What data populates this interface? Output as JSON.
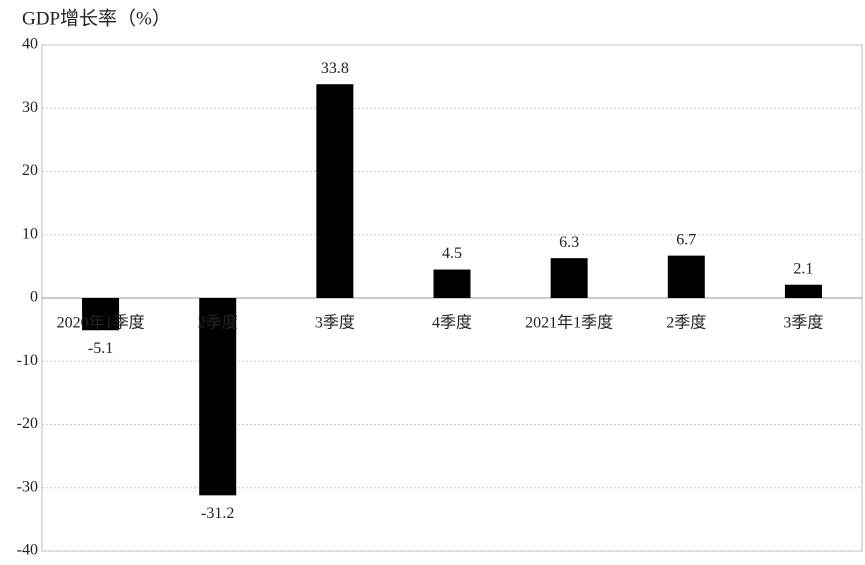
{
  "chart_data": {
    "type": "bar",
    "title": "GDP增长率（%）",
    "categories": [
      "2020年1季度",
      "2季度",
      "3季度",
      "4季度",
      "2021年1季度",
      "2季度",
      "3季度"
    ],
    "values": [
      -5.1,
      -31.2,
      33.8,
      4.5,
      6.3,
      6.7,
      2.1
    ],
    "color": "#000000",
    "ylim": [
      -40,
      40
    ],
    "yticks": [
      -40,
      -30,
      -20,
      -10,
      0,
      10,
      20,
      30,
      40
    ],
    "grid": true
  }
}
